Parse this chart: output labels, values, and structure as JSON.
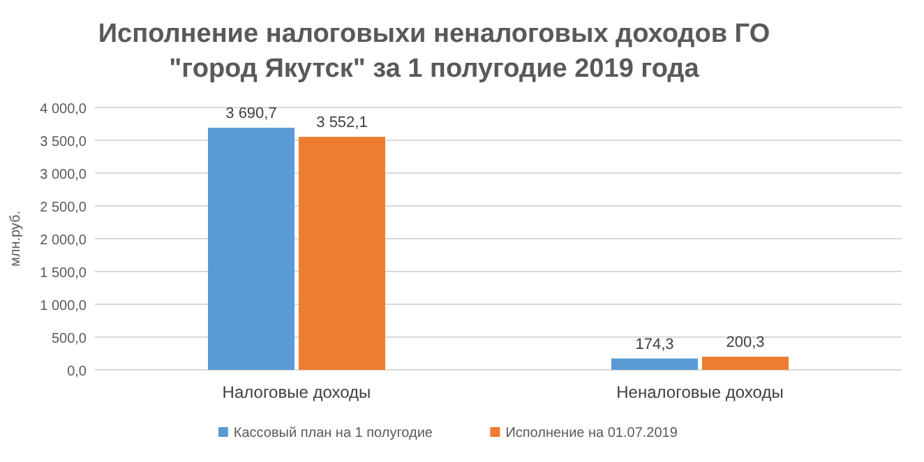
{
  "chart_data": {
    "type": "bar",
    "title": "Исполнение налоговыхи неналоговых доходов ГО\n\"город Якутск\" за 1 полугодие 2019 года",
    "ylabel": "млн.руб.",
    "categories": [
      "Налоговые доходы",
      "Неналоговые доходы"
    ],
    "series": [
      {
        "name": "Кассовый план на 1 полугодие",
        "color": "#5b9bd5",
        "values": [
          3690.7,
          174.3
        ],
        "value_labels": [
          "3 690,7",
          "174,3"
        ]
      },
      {
        "name": "Исполнение на 01.07.2019",
        "color": "#ed7d31",
        "values": [
          3552.1,
          200.3
        ],
        "value_labels": [
          "3 552,1",
          "200,3"
        ]
      }
    ],
    "ylim": [
      0,
      4000
    ],
    "yticks": [
      {
        "value": 0,
        "label": "0,0"
      },
      {
        "value": 500,
        "label": "500,0"
      },
      {
        "value": 1000,
        "label": "1 000,0"
      },
      {
        "value": 1500,
        "label": "1 500,0"
      },
      {
        "value": 2000,
        "label": "2 000,0"
      },
      {
        "value": 2500,
        "label": "2 500,0"
      },
      {
        "value": 3000,
        "label": "3 000,0"
      },
      {
        "value": 3500,
        "label": "3 500,0"
      },
      {
        "value": 4000,
        "label": "4 000,0"
      }
    ],
    "grid": "y",
    "legend": "bottom"
  }
}
